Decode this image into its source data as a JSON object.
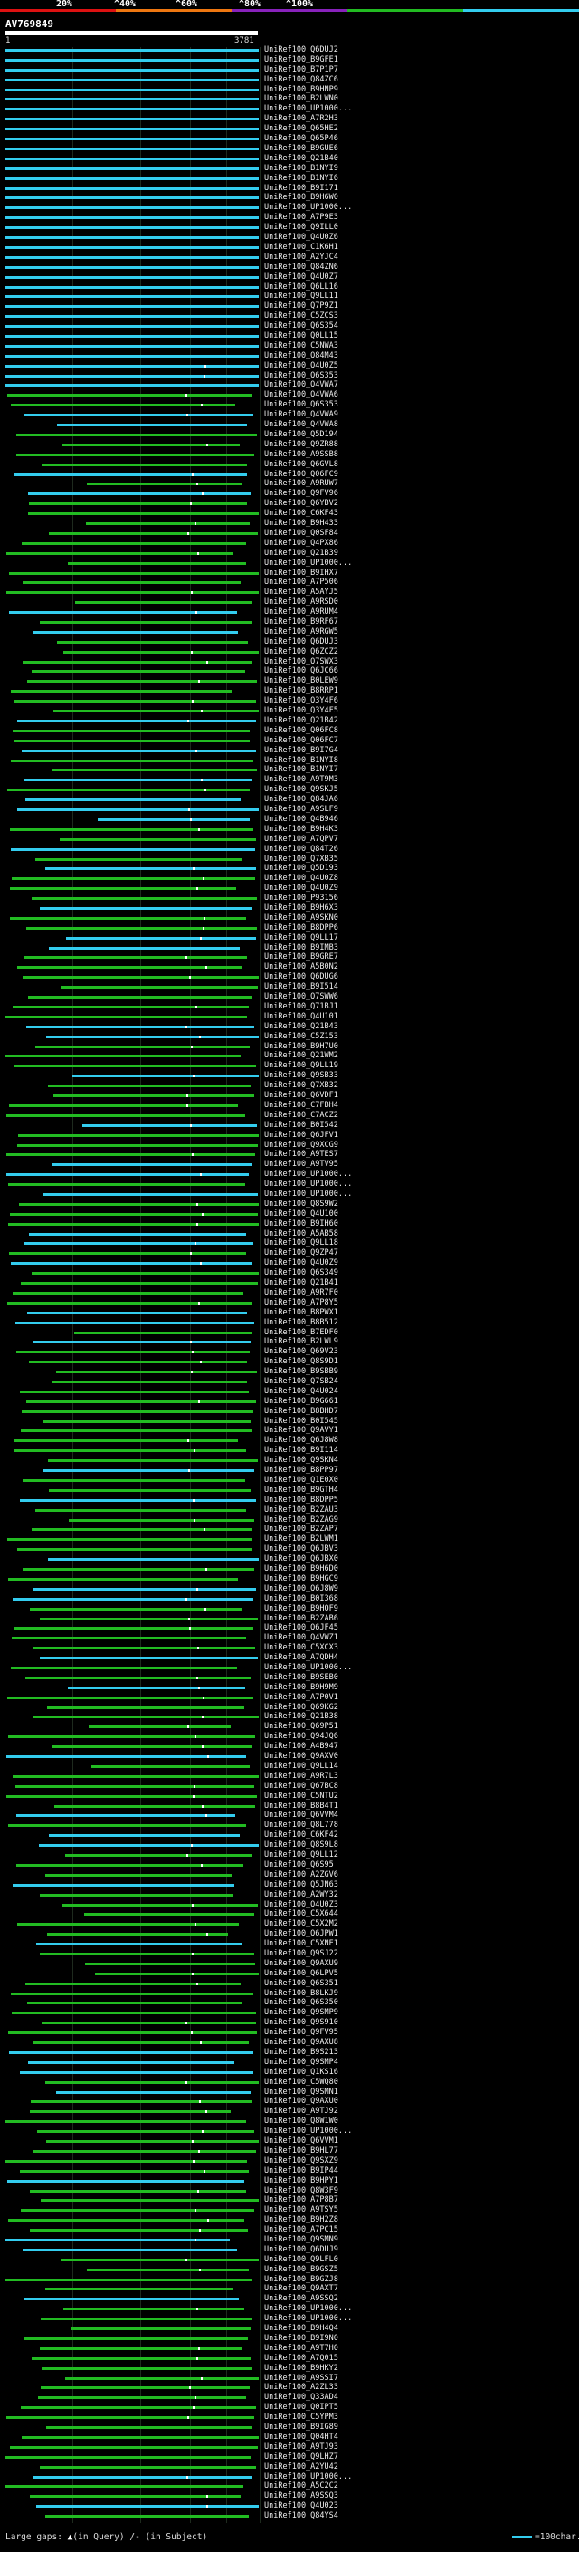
{
  "legend": {
    "ticks": [
      "20%",
      "^40%",
      "^60%",
      "^80%",
      "^100%"
    ],
    "colors": [
      "#dd1111",
      "#ee7711",
      "#8822bb",
      "#22bb22",
      "#33ccee"
    ]
  },
  "query": {
    "id": "AV769849",
    "start": "1",
    "end": "3781"
  },
  "hits": [
    "UniRef100_Q6DUJ2",
    "UniRef100_B9GFE1",
    "UniRef100_B7P1P7",
    "UniRef100_Q84ZC6",
    "UniRef100_B9HNP9",
    "UniRef100_B2LWN0",
    "UniRef100_UP1000...",
    "UniRef100_A7R2H3",
    "UniRef100_Q65HE2",
    "UniRef100_Q65P46",
    "UniRef100_B9GUE6",
    "UniRef100_Q21B40",
    "UniRef100_B1NYI9",
    "UniRef100_B1NYI6",
    "UniRef100_B9I171",
    "UniRef100_B9H6W0",
    "UniRef100_UP1000...",
    "UniRef100_A7P9E3",
    "UniRef100_Q9ILL0",
    "UniRef100_Q4U0Z6",
    "UniRef100_C1K6H1",
    "UniRef100_A2YJC4",
    "UniRef100_Q84ZN6",
    "UniRef100_Q4U0Z7",
    "UniRef100_Q6LL16",
    "UniRef100_Q9LL11",
    "UniRef100_Q7P9Z1",
    "UniRef100_C5ZCS3",
    "UniRef100_Q6S354",
    "UniRef100_Q0LL15",
    "UniRef100_C5NWA3",
    "UniRef100_Q84M43",
    "UniRef100_Q4U0Z5",
    "UniRef100_Q6S353",
    "UniRef100_Q4VWA7",
    "UniRef100_Q4VWA6",
    "UniRef100_Q6S353",
    "UniRef100_Q4VWA9",
    "UniRef100_Q4VWA8",
    "UniRef100_Q5D194",
    "UniRef100_Q9ZR88",
    "UniRef100_A9SSB8",
    "UniRef100_Q6GVL8",
    "UniRef100_Q06FC9",
    "UniRef100_A9RUW7",
    "UniRef100_Q9FV96",
    "UniRef100_Q6YBV2",
    "UniRef100_C6KF43",
    "UniRef100_B9H433",
    "UniRef100_Q0SF84",
    "UniRef100_Q4PX86",
    "UniRef100_Q21B39",
    "UniRef100_UP1000...",
    "UniRef100_B9IHX7",
    "UniRef100_A7P506",
    "UniRef100_A5AYJ5",
    "UniRef100_A9RSD0",
    "UniRef100_A9RUM4",
    "UniRef100_B9RF67",
    "UniRef100_A9RGW5",
    "UniRef100_Q6DUJ3",
    "UniRef100_Q6ZCZ2",
    "UniRef100_Q7SWX3",
    "UniRef100_Q6JC66",
    "UniRef100_B0LEW9",
    "UniRef100_B8RRP1",
    "UniRef100_Q3Y4F6",
    "UniRef100_Q3Y4F5",
    "UniRef100_Q21B42",
    "UniRef100_Q06FC8",
    "UniRef100_Q06FC7",
    "UniRef100_B9I7G4",
    "UniRef100_B1NYI8",
    "UniRef100_B1NYI7",
    "UniRef100_A9T9M3",
    "UniRef100_Q9SKJ5",
    "UniRef100_Q84JA6",
    "UniRef100_A9SLF9",
    "UniRef100_Q4B946",
    "UniRef100_B9H4K3",
    "UniRef100_A7QPV7",
    "UniRef100_Q84T26",
    "UniRef100_Q7XB35",
    "UniRef100_Q5D193",
    "UniRef100_Q4U0Z8",
    "UniRef100_Q4U0Z9",
    "UniRef100_P93156",
    "UniRef100_B9H6X3",
    "UniRef100_A9SKN0",
    "UniRef100_B8DPP6",
    "UniRef100_Q9LL17",
    "UniRef100_B9IMB3",
    "UniRef100_B9GRE7",
    "UniRef100_A5B0N2",
    "UniRef100_Q6DUG6",
    "UniRef100_B9I514",
    "UniRef100_Q7SWW6",
    "UniRef100_Q71BJ1",
    "UniRef100_Q4U101",
    "UniRef100_Q21B43",
    "UniRef100_C5Z153",
    "UniRef100_B9H7U0",
    "UniRef100_Q21WM2",
    "UniRef100_Q9LL19",
    "UniRef100_Q9SB33",
    "UniRef100_Q7XB32",
    "UniRef100_Q6VDF1",
    "UniRef100_C7FBH4",
    "UniRef100_C7ACZ2",
    "UniRef100_B0I542",
    "UniRef100_Q6JFV1",
    "UniRef100_Q9XCG9",
    "UniRef100_A9TES7",
    "UniRef100_A9TV95",
    "UniRef100_UP1000...",
    "UniRef100_UP1000...",
    "UniRef100_UP1000...",
    "UniRef100_Q8S9W2",
    "UniRef100_Q4U100",
    "UniRef100_B9IH60",
    "UniRef100_A5AB58",
    "UniRef100_Q9LL18",
    "UniRef100_Q9ZP47",
    "UniRef100_Q4U0Z9",
    "UniRef100_Q6S349",
    "UniRef100_Q21B41",
    "UniRef100_A9R7F0",
    "UniRef100_A7P8Y5",
    "UniRef100_B8PWX1",
    "UniRef100_B8B512",
    "UniRef100_B7EDF0",
    "UniRef100_B2LWL9",
    "UniRef100_Q69V23",
    "UniRef100_Q8S9D1",
    "UniRef100_B9SBB9",
    "UniRef100_Q7SB24",
    "UniRef100_Q4U024",
    "UniRef100_B9G661",
    "UniRef100_B8BHD7",
    "UniRef100_B0I545",
    "UniRef100_Q9AVY1",
    "UniRef100_Q6J8W8",
    "UniRef100_B9I114",
    "UniRef100_Q9SKN4",
    "UniRef100_B8PP97",
    "UniRef100_Q1E0X0",
    "UniRef100_B9GTH4",
    "UniRef100_B8DPP5",
    "UniRef100_B2ZAU3",
    "UniRef100_B2ZAG9",
    "UniRef100_B2ZAP7",
    "UniRef100_B2LWM1",
    "UniRef100_Q6JBV3",
    "UniRef100_Q6JBX0",
    "UniRef100_B9H6D0",
    "UniRef100_B9HGC9",
    "UniRef100_Q6J8W9",
    "UniRef100_B0I368",
    "UniRef100_B9HQF9",
    "UniRef100_B2ZAB6",
    "UniRef100_Q6JF45",
    "UniRef100_Q4VWZ1",
    "UniRef100_C5XCX3",
    "UniRef100_A7QDH4",
    "UniRef100_UP1000...",
    "UniRef100_B9SEB0",
    "UniRef100_B9H9M9",
    "UniRef100_A7P0V1",
    "UniRef100_Q69KG2",
    "UniRef100_Q21B38",
    "UniRef100_Q69P51",
    "UniRef100_Q94JQ6",
    "UniRef100_A4B947",
    "UniRef100_Q9AXV0",
    "UniRef100_Q9LL14",
    "UniRef100_A9R7L3",
    "UniRef100_Q67BC8",
    "UniRef100_C5NTU2",
    "UniRef100_B8B4T1",
    "UniRef100_Q6VVM4",
    "UniRef100_Q8L778",
    "UniRef100_C6KF42",
    "UniRef100_Q8S9L8",
    "UniRef100_Q9LL12",
    "UniRef100_Q6S95",
    "UniRef100_A2ZGV6",
    "UniRef100_Q5JN63",
    "UniRef100_A2WY32",
    "UniRef100_Q4U0Z3",
    "UniRef100_C5X644",
    "UniRef100_C5X2M2",
    "UniRef100_Q6JPW1",
    "UniRef100_C5XNE1",
    "UniRef100_Q9SJ22",
    "UniRef100_Q9AXU9",
    "UniRef100_Q6LPV5",
    "UniRef100_Q6S351",
    "UniRef100_B8LKJ9",
    "UniRef100_Q6S350",
    "UniRef100_Q9SMP9",
    "UniRef100_Q9S910",
    "UniRef100_Q9FV95",
    "UniRef100_Q9AXU8",
    "UniRef100_B9S213",
    "UniRef100_Q9SMP4",
    "UniRef100_Q1KS16",
    "UniRef100_C5WQ80",
    "UniRef100_Q9SMN1",
    "UniRef100_Q9AXU0",
    "UniRef100_A9TJ92",
    "UniRef100_Q8W1W0",
    "UniRef100_UP1000...",
    "UniRef100_Q6VVM1",
    "UniRef100_B9HL77",
    "UniRef100_Q9SXZ9",
    "UniRef100_B9IP44",
    "UniRef100_B9HPY1",
    "UniRef100_Q8W3F9",
    "UniRef100_A7P8B7",
    "UniRef100_A9TSY5",
    "UniRef100_B9H2Z8",
    "UniRef100_A7PC15",
    "UniRef100_Q9SMN9",
    "UniRef100_Q6DUJ9",
    "UniRef100_Q9LFL0",
    "UniRef100_B9GSZ5",
    "UniRef100_B9GZJ8",
    "UniRef100_Q9AXT7",
    "UniRef100_A9SSQ2",
    "UniRef100_UP1000...",
    "UniRef100_UP1000...",
    "UniRef100_B9H4Q4",
    "UniRef100_B9I9N0",
    "UniRef100_A9T7H0",
    "UniRef100_A7Q015",
    "UniRef100_B9HKY2",
    "UniRef100_A9SSI7",
    "UniRef100_A2ZL33",
    "UniRef100_Q33AD4",
    "UniRef100_Q0IPT5",
    "UniRef100_C5YPM3",
    "UniRef100_B9IG89",
    "UniRef100_Q04HT4",
    "UniRef100_A9TJ93",
    "UniRef100_Q9LHZ7",
    "UniRef100_A2YU42",
    "UniRef100_UP1000...",
    "UniRef100_A5C2C2",
    "UniRef100_A9SSQ3",
    "UniRef100_Q4U023",
    "UniRef100_Q84YS4"
  ],
  "footer": {
    "large_gaps_label": "Large gaps:",
    "gap_query_text": "(in Query)",
    "gap_subject_text": "(in Subject)",
    "gap_query_marker": "▲",
    "gap_subject_marker": "/",
    "separator": "-",
    "scale_text": "=100char."
  }
}
